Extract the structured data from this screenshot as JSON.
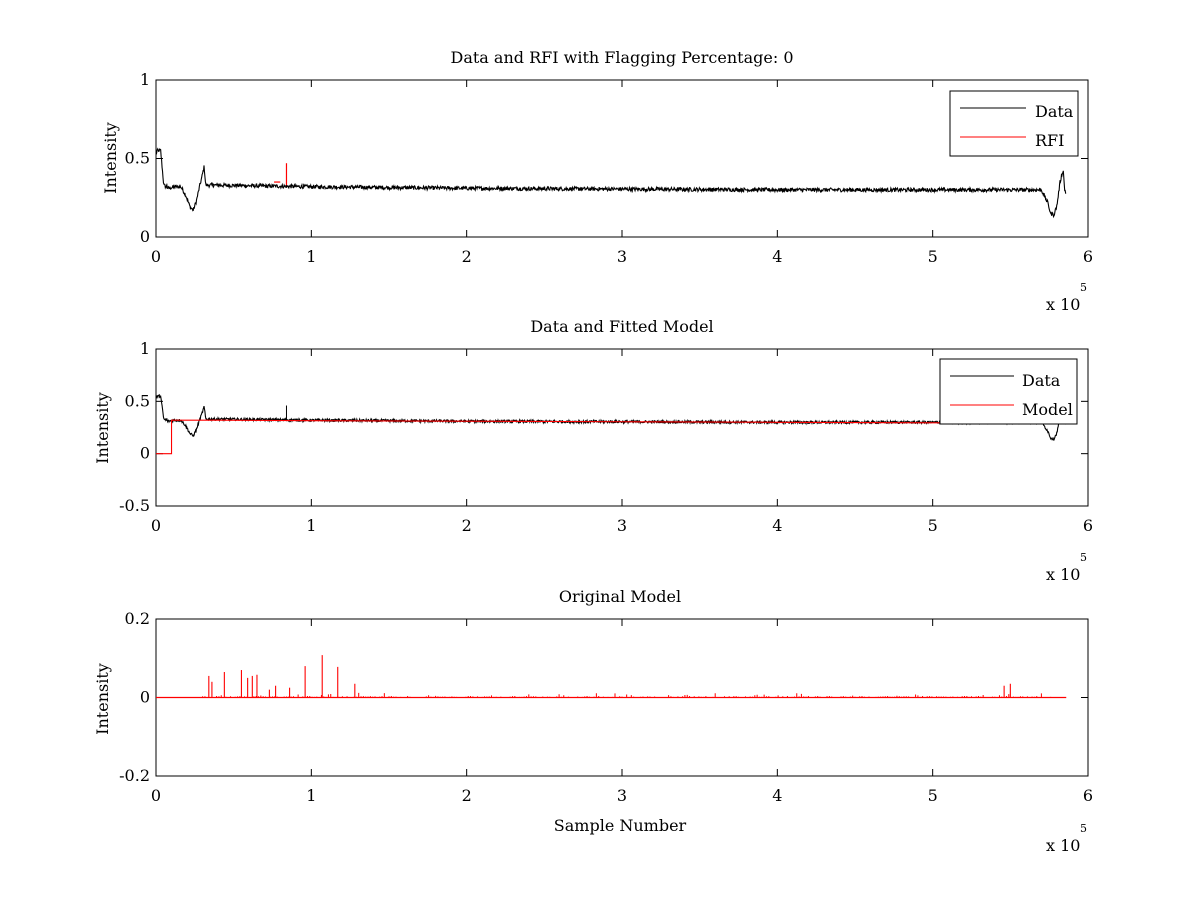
{
  "chart_data": [
    {
      "type": "line",
      "title": "Data and RFI with Flagging Percentage: 0",
      "xlabel": "",
      "ylabel": "Intensity",
      "xlim": [
        0,
        600000
      ],
      "ylim": [
        0,
        1
      ],
      "xticks": [
        0,
        1,
        2,
        3,
        4,
        5,
        6
      ],
      "xtick_labels": [
        "0",
        "1",
        "2",
        "3",
        "4",
        "5",
        "6"
      ],
      "x_multiplier": {
        "base": "x 10",
        "exponent": "5"
      },
      "yticks": [
        0,
        0.5,
        1
      ],
      "ytick_labels": [
        "0",
        "0.5",
        "1"
      ],
      "grid": false,
      "legend_position": "top-right",
      "series": [
        {
          "name": "Data",
          "color": "#000000",
          "kind": "noisy",
          "points": [
            [
              0,
              0.53
            ],
            [
              1000,
              0.55
            ],
            [
              3000,
              0.55
            ],
            [
              5000,
              0.33
            ],
            [
              8000,
              0.31
            ],
            [
              12000,
              0.32
            ],
            [
              16000,
              0.32
            ],
            [
              19000,
              0.27
            ],
            [
              22000,
              0.19
            ],
            [
              24000,
              0.17
            ],
            [
              26000,
              0.23
            ],
            [
              28000,
              0.32
            ],
            [
              29500,
              0.38
            ],
            [
              31000,
              0.45
            ],
            [
              32000,
              0.33
            ],
            [
              40000,
              0.33
            ],
            [
              100000,
              0.32
            ],
            [
              200000,
              0.31
            ],
            [
              300000,
              0.305
            ],
            [
              400000,
              0.3
            ],
            [
              500000,
              0.3
            ],
            [
              560000,
              0.3
            ],
            [
              570000,
              0.3
            ],
            [
              574000,
              0.22
            ],
            [
              576000,
              0.15
            ],
            [
              578000,
              0.14
            ],
            [
              580000,
              0.2
            ],
            [
              582000,
              0.35
            ],
            [
              584000,
              0.43
            ],
            [
              585000,
              0.3
            ],
            [
              586000,
              0.28
            ]
          ],
          "spikes": [
            [
              7000,
              0.34
            ],
            [
              37000,
              0.34
            ],
            [
              94000,
              0.34
            ]
          ]
        },
        {
          "name": "RFI",
          "color": "#ff0000",
          "kind": "rfi",
          "points": [
            [
              76000,
              0.35
            ],
            [
              84000,
              0.47
            ],
            [
              85000,
              0.33
            ]
          ]
        }
      ]
    },
    {
      "type": "line",
      "title": "Data and Fitted Model",
      "xlabel": "",
      "ylabel": "Intensity",
      "xlim": [
        0,
        600000
      ],
      "ylim": [
        -0.5,
        1
      ],
      "xticks": [
        0,
        1,
        2,
        3,
        4,
        5,
        6
      ],
      "xtick_labels": [
        "0",
        "1",
        "2",
        "3",
        "4",
        "5",
        "6"
      ],
      "x_multiplier": {
        "base": "x 10",
        "exponent": "5"
      },
      "yticks": [
        -0.5,
        0,
        0.5,
        1
      ],
      "ytick_labels": [
        "-0.5",
        "0",
        "0.5",
        "1"
      ],
      "grid": false,
      "legend_position": "top-right",
      "series": [
        {
          "name": "Data",
          "color": "#000000",
          "kind": "noisy",
          "points": [
            [
              0,
              0.53
            ],
            [
              1000,
              0.55
            ],
            [
              3000,
              0.55
            ],
            [
              5000,
              0.33
            ],
            [
              8000,
              0.31
            ],
            [
              12000,
              0.32
            ],
            [
              16000,
              0.32
            ],
            [
              19000,
              0.27
            ],
            [
              22000,
              0.19
            ],
            [
              24000,
              0.17
            ],
            [
              26000,
              0.23
            ],
            [
              28000,
              0.32
            ],
            [
              29500,
              0.38
            ],
            [
              31000,
              0.45
            ],
            [
              32000,
              0.33
            ],
            [
              40000,
              0.33
            ],
            [
              100000,
              0.32
            ],
            [
              200000,
              0.31
            ],
            [
              300000,
              0.305
            ],
            [
              400000,
              0.3
            ],
            [
              500000,
              0.3
            ],
            [
              560000,
              0.3
            ],
            [
              570000,
              0.3
            ],
            [
              574000,
              0.22
            ],
            [
              576000,
              0.15
            ],
            [
              578000,
              0.14
            ],
            [
              580000,
              0.2
            ],
            [
              582000,
              0.35
            ],
            [
              584000,
              0.43
            ],
            [
              585000,
              0.3
            ],
            [
              586000,
              0.28
            ]
          ],
          "spikes": [
            [
              7000,
              0.34
            ],
            [
              37000,
              0.34
            ],
            [
              84000,
              0.46
            ]
          ]
        },
        {
          "name": "Model",
          "color": "#ff0000",
          "kind": "step",
          "points": [
            [
              0,
              0
            ],
            [
              10000,
              0
            ],
            [
              10000,
              0.32
            ],
            [
              40000,
              0.32
            ],
            [
              100000,
              0.315
            ],
            [
              200000,
              0.31
            ],
            [
              300000,
              0.305
            ],
            [
              400000,
              0.3
            ],
            [
              500000,
              0.295
            ],
            [
              565000,
              0.295
            ]
          ]
        }
      ]
    },
    {
      "type": "line",
      "title": "Original Model",
      "xlabel": "Sample Number",
      "ylabel": "Intensity",
      "xlim": [
        0,
        600000
      ],
      "ylim": [
        -0.2,
        0.2
      ],
      "xticks": [
        0,
        1,
        2,
        3,
        4,
        5,
        6
      ],
      "xtick_labels": [
        "0",
        "1",
        "2",
        "3",
        "4",
        "5",
        "6"
      ],
      "x_multiplier": {
        "base": "x 10",
        "exponent": "5"
      },
      "yticks": [
        -0.2,
        0,
        0.2
      ],
      "ytick_labels": [
        "-0.2",
        "0",
        "0.2"
      ],
      "grid": false,
      "legend_position": "none",
      "series": [
        {
          "color": "#ff0000",
          "kind": "spikes",
          "baseline": 0,
          "x_end": 586000,
          "spikes": [
            [
              34000,
              0.055
            ],
            [
              36000,
              0.04
            ],
            [
              44000,
              0.065
            ],
            [
              55000,
              0.07
            ],
            [
              59000,
              0.05
            ],
            [
              62000,
              0.055
            ],
            [
              65000,
              0.058
            ],
            [
              73000,
              0.02
            ],
            [
              77000,
              0.03
            ],
            [
              86000,
              0.025
            ],
            [
              96000,
              0.08
            ],
            [
              107000,
              0.108
            ],
            [
              117000,
              0.078
            ],
            [
              128000,
              0.035
            ],
            [
              546000,
              0.03
            ],
            [
              550000,
              0.035
            ]
          ]
        }
      ]
    }
  ]
}
